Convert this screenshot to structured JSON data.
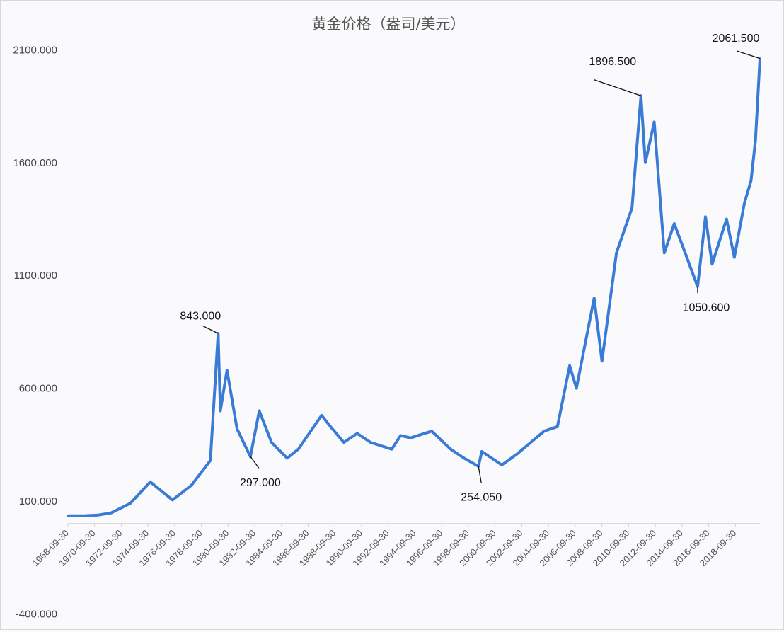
{
  "chart_data": {
    "type": "line",
    "title": "黄金价格（盎司/美元）",
    "xlabel": "",
    "ylabel": "",
    "ylim": [
      -400,
      2100
    ],
    "yticks": [
      "2100.000",
      "1600.000",
      "1100.000",
      "600.000",
      "100.000",
      "-400.000"
    ],
    "ytick_values": [
      2100,
      1600,
      1100,
      600,
      100,
      -400
    ],
    "xticks": [
      "1968-09-30",
      "1970-09-30",
      "1972-09-30",
      "1974-09-30",
      "1976-09-30",
      "1978-09-30",
      "1980-09-30",
      "1982-09-30",
      "1984-09-30",
      "1986-09-30",
      "1988-09-30",
      "1990-09-30",
      "1992-09-30",
      "1994-09-30",
      "1996-09-30",
      "1998-09-30",
      "2000-09-30",
      "2002-09-30",
      "2004-09-30",
      "2006-09-30",
      "2008-09-30",
      "2010-09-30",
      "2012-09-30",
      "2014-09-30",
      "2016-09-30",
      "2018-09-30"
    ],
    "grid": false,
    "legend": "none",
    "line_color": "#3a7bd5",
    "series": [
      {
        "x": [
          "1968-10",
          "1970-01",
          "1971-01",
          "1972-01",
          "1973-06",
          "1974-12",
          "1976-08",
          "1978-01",
          "1979-06",
          "1980-01",
          "1980-03",
          "1980-09",
          "1981-06",
          "1982-06",
          "1983-02",
          "1984-01",
          "1985-03",
          "1986-01",
          "1987-10",
          "1988-06",
          "1989-06",
          "1990-06",
          "1991-06",
          "1993-01",
          "1993-09",
          "1994-06",
          "1996-01",
          "1997-06",
          "1998-06",
          "1999-07",
          "1999-10",
          "2001-04",
          "2002-06",
          "2003-06",
          "2004-06",
          "2005-06",
          "2006-05",
          "2006-11",
          "2008-03",
          "2008-10",
          "2009-11",
          "2011-01",
          "2011-09",
          "2012-01",
          "2012-09",
          "2013-06",
          "2014-03",
          "2015-12",
          "2016-07",
          "2017-01",
          "2018-02",
          "2018-09",
          "2019-06",
          "2019-12",
          "2020-04",
          "2020-08"
        ],
        "values": [
          35,
          35,
          38,
          48,
          90,
          185,
          105,
          170,
          280,
          843,
          500,
          680,
          420,
          297,
          500,
          360,
          290,
          330,
          480,
          430,
          360,
          400,
          360,
          330,
          390,
          380,
          410,
          330,
          290,
          254.05,
          320,
          260,
          310,
          360,
          410,
          430,
          700,
          600,
          1000,
          720,
          1200,
          1400,
          1896.5,
          1600,
          1780,
          1200,
          1330,
          1050.6,
          1360,
          1150,
          1350,
          1180,
          1420,
          1520,
          1700,
          2061.5
        ]
      }
    ],
    "annotations": [
      {
        "x": "1980-01",
        "value": 843,
        "label": "843.000"
      },
      {
        "x": "1982-06",
        "value": 297,
        "label": "297.000"
      },
      {
        "x": "1999-07",
        "value": 254.05,
        "label": "254.050"
      },
      {
        "x": "2011-09",
        "value": 1896.5,
        "label": "1896.500"
      },
      {
        "x": "2015-12",
        "value": 1050.6,
        "label": "1050.600"
      },
      {
        "x": "2020-08",
        "value": 2061.5,
        "label": "2061.500"
      }
    ]
  }
}
